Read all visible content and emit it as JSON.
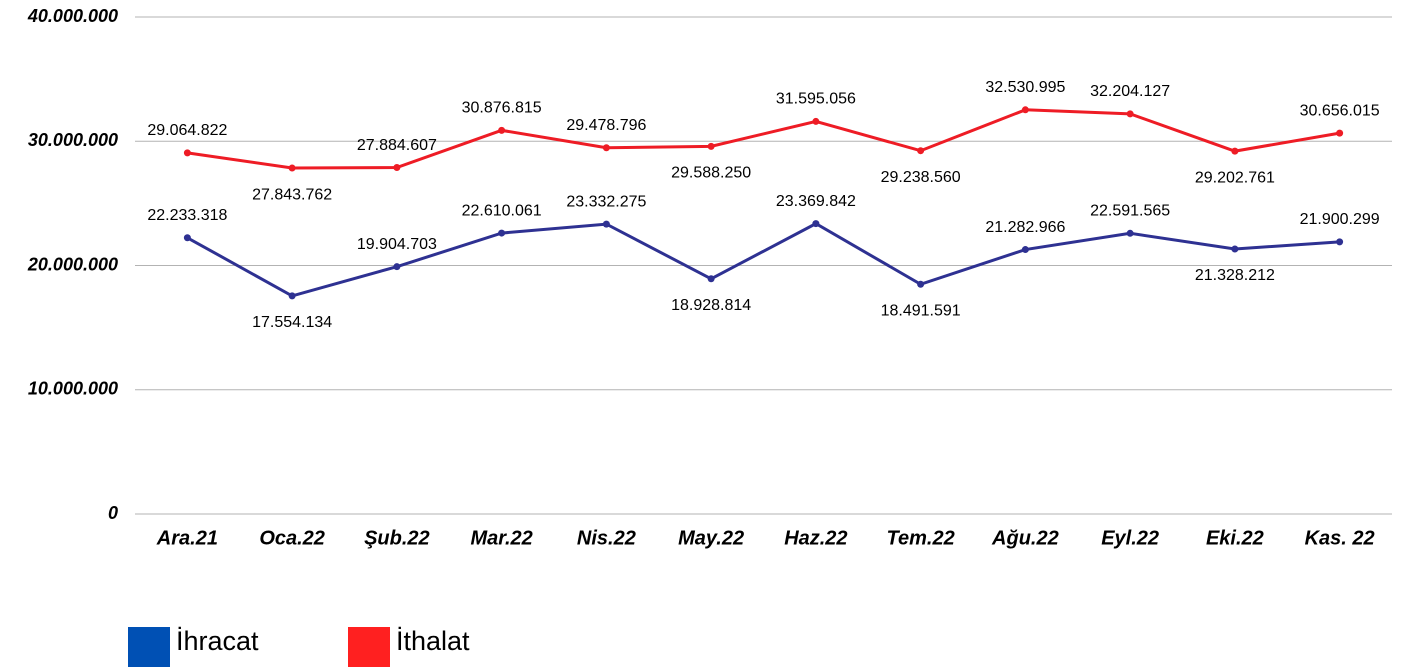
{
  "chart_data": {
    "type": "line",
    "categories": [
      "Ara.21",
      "Oca.22",
      "Şub.22",
      "Mar.22",
      "Nis.22",
      "May.22",
      "Haz.22",
      "Tem.22",
      "Ağu.22",
      "Eyl.22",
      "Eki.22",
      "Kas. 22"
    ],
    "series": [
      {
        "name": "İhracat",
        "color": "#2e3192",
        "legend_color": "#0050b4",
        "values": [
          22233318,
          17554134,
          19904703,
          22610061,
          23332275,
          18928814,
          23369842,
          18491591,
          21282966,
          22591565,
          21328212,
          21900299
        ],
        "value_labels": [
          "22.233.318",
          "17.554.134",
          "19.904.703",
          "22.610.061",
          "23.332.275",
          "18.928.814",
          "23.369.842",
          "18.491.591",
          "21.282.966",
          "22.591.565",
          "21.328.212",
          "21.900.299"
        ]
      },
      {
        "name": "İthalat",
        "color": "#ee1c25",
        "legend_color": "#ff2020",
        "values": [
          29064822,
          27843762,
          27884607,
          30876815,
          29478796,
          29588250,
          31595056,
          29238560,
          32530995,
          32204127,
          29202761,
          30656015
        ],
        "value_labels": [
          "29.064.822",
          "27.843.762",
          "27.884.607",
          "30.876.815",
          "29.478.796",
          "29.588.250",
          "31.595.056",
          "29.238.560",
          "32.530.995",
          "32.204.127",
          "29.202.761",
          "30.656.015"
        ]
      }
    ],
    "ylim": [
      0,
      40000000
    ],
    "yticks": [
      0,
      {
        "value": 10000000,
        "label": "10.000.000"
      },
      {
        "value": 20000000,
        "label": "20.000.000"
      },
      {
        "value": 30000000,
        "label": "30.000.000"
      },
      {
        "value": 40000000,
        "label": "40.000.000"
      }
    ],
    "grid": true
  }
}
